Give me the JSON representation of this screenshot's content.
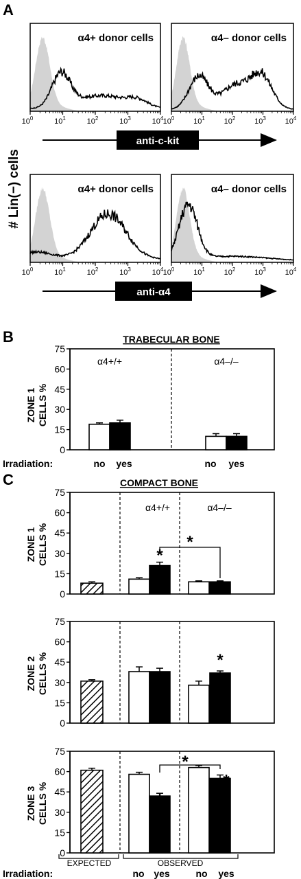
{
  "panel_letters": {
    "a": "A",
    "b": "B",
    "c": "C"
  },
  "hist_ylabel": "# Lin(−) cells",
  "histograms": [
    {
      "label": "α4+ donor cells",
      "marker": "anti-c-kit",
      "shape": "kit-pos"
    },
    {
      "label": "α4– donor cells",
      "marker": "anti-c-kit",
      "shape": "kit-neg"
    },
    {
      "label": "α4+ donor cells",
      "marker": "anti-α4",
      "shape": "a4-pos"
    },
    {
      "label": "α4– donor cells",
      "marker": "anti-α4",
      "shape": "a4-neg"
    }
  ],
  "hist_axis": {
    "base": "10",
    "exponents": [
      "0",
      "1",
      "2",
      "3",
      "4"
    ]
  },
  "arrows": {
    "kit": "anti-c-kit",
    "a4": "anti-α4"
  },
  "colors": {
    "isotype_fill": "#d3d3d3",
    "observed_bar": "#000000",
    "control_bar": "#ffffff"
  },
  "chart_data": [
    {
      "type": "bar",
      "title": "TRABECULAR BONE",
      "ylabel": "ZONE 1 CELLS %",
      "ylim": [
        0,
        75
      ],
      "yticks": [
        "0",
        "15",
        "30",
        "45",
        "60",
        "75"
      ],
      "groups": [
        "α4+/+",
        "α4–/–"
      ],
      "categories": [
        "no",
        "yes",
        "no",
        "yes"
      ],
      "values": [
        19,
        20,
        10,
        10
      ],
      "errors": [
        1,
        2,
        2,
        2
      ],
      "irradiation_label": "Irradiation:"
    },
    {
      "type": "bar",
      "title": "COMPACT BONE",
      "ylabel": "ZONE 1 CELLS %",
      "ylim": [
        0,
        75
      ],
      "yticks": [
        "0",
        "15",
        "30",
        "45",
        "60",
        "75"
      ],
      "groups": [
        "α4+/+",
        "α4–/–"
      ],
      "expected": {
        "value": 8,
        "error": 1
      },
      "values": [
        11,
        21,
        9,
        9
      ],
      "errors": [
        1,
        2.5,
        0.7,
        0.7
      ],
      "stars": [
        "*",
        "*"
      ]
    },
    {
      "type": "bar",
      "ylabel": "ZONE 2 CELLS %",
      "ylim": [
        0,
        75
      ],
      "yticks": [
        "0",
        "15",
        "30",
        "45",
        "60",
        "75"
      ],
      "expected": {
        "value": 31,
        "error": 1
      },
      "values": [
        38,
        38,
        28,
        37
      ],
      "errors": [
        3.5,
        2.5,
        3,
        1.5
      ],
      "stars": [
        "*"
      ]
    },
    {
      "type": "bar",
      "ylabel": "ZONE 3 CELLS %",
      "ylim": [
        0,
        75
      ],
      "yticks": [
        "0",
        "15",
        "30",
        "45",
        "60",
        "75"
      ],
      "expected": {
        "value": 61,
        "error": 1.5
      },
      "values": [
        58,
        42,
        63,
        55
      ],
      "errors": [
        1.5,
        2,
        1.5,
        2.5
      ],
      "stars": [
        "*",
        "*",
        "*"
      ],
      "footer": [
        "EXPECTED",
        "OBSERVED"
      ],
      "irradiation_label": "Irradiation:",
      "categories": [
        "no",
        "yes",
        "no",
        "yes"
      ]
    }
  ]
}
